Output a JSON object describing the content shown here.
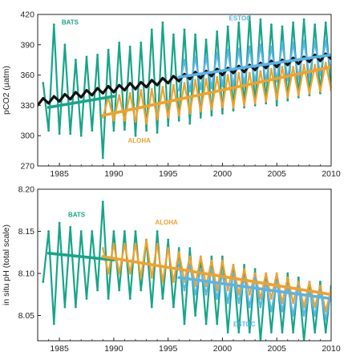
{
  "chart_data": [
    {
      "type": "line",
      "ylabel": "pCO2 (µatm)",
      "xlim": [
        1983,
        2010
      ],
      "ylim": [
        270,
        420
      ],
      "xticks": [
        1985,
        1990,
        1995,
        2000,
        2005,
        2010
      ],
      "yticks": [
        270,
        300,
        330,
        360,
        390,
        420
      ],
      "grid": false,
      "series": [
        {
          "name": "BATS",
          "color": "#17a589",
          "x": [
            1983.5,
            1984.0,
            1984.5,
            1985.0,
            1985.5,
            1986.0,
            1986.5,
            1987.0,
            1987.5,
            1988.0,
            1988.5,
            1989.0,
            1989.5,
            1990.0,
            1990.5,
            1991.0,
            1991.5,
            1992.0,
            1992.5,
            1993.0,
            1993.5,
            1994.0,
            1994.5,
            1995.0,
            1995.5,
            1996.0,
            1996.5,
            1997.0,
            1997.5,
            1998.0,
            1998.5,
            1999.0,
            1999.5,
            2000.0,
            2000.5,
            2001.0,
            2001.5,
            2002.0,
            2002.5,
            2003.0,
            2003.5,
            2004.0,
            2004.5,
            2005.0,
            2005.5,
            2006.0,
            2006.5,
            2007.0,
            2007.5,
            2008.0,
            2008.5,
            2009.0,
            2009.5,
            2010.0
          ],
          "values": [
            352,
            305,
            410,
            302,
            390,
            302,
            375,
            300,
            378,
            305,
            380,
            278,
            385,
            305,
            392,
            306,
            388,
            300,
            392,
            305,
            405,
            303,
            412,
            310,
            400,
            315,
            405,
            312,
            400,
            318,
            395,
            320,
            403,
            322,
            408,
            325,
            412,
            328,
            418,
            330,
            415,
            332,
            410,
            330,
            408,
            335,
            412,
            338,
            415,
            340,
            410,
            342,
            412,
            345
          ]
        },
        {
          "name": "ESTOC",
          "color": "#5ab4e5",
          "x": [
            1996.0,
            1996.5,
            1997.0,
            1997.5,
            1998.0,
            1998.5,
            1999.0,
            1999.5,
            2000.0,
            2000.5,
            2001.0,
            2001.5,
            2002.0,
            2002.5,
            2003.0,
            2003.5,
            2004.0,
            2004.5,
            2005.0,
            2005.5,
            2006.0,
            2006.5,
            2007.0,
            2007.5,
            2008.0,
            2008.5,
            2009.0,
            2009.5,
            2010.0
          ],
          "values": [
            345,
            375,
            344,
            378,
            346,
            378,
            347,
            382,
            349,
            385,
            348,
            386,
            350,
            388,
            352,
            390,
            353,
            388,
            354,
            392,
            355,
            392,
            356,
            394,
            358,
            393,
            360,
            394,
            362
          ]
        },
        {
          "name": "ALOHA",
          "color": "#f0a12c",
          "x": [
            1989.0,
            1989.5,
            1990.0,
            1990.5,
            1991.0,
            1991.5,
            1992.0,
            1992.5,
            1993.0,
            1993.5,
            1994.0,
            1994.5,
            1995.0,
            1995.5,
            1996.0,
            1996.5,
            1997.0,
            1997.5,
            1998.0,
            1998.5,
            1999.0,
            1999.5,
            2000.0,
            2000.5,
            2001.0,
            2001.5,
            2002.0,
            2002.5,
            2003.0,
            2003.5,
            2004.0,
            2004.5,
            2005.0,
            2005.5,
            2006.0,
            2006.5,
            2007.0,
            2007.5,
            2008.0,
            2008.5,
            2009.0,
            2009.5,
            2010.0
          ],
          "values": [
            318,
            338,
            315,
            340,
            315,
            342,
            314,
            345,
            312,
            346,
            316,
            348,
            318,
            350,
            320,
            352,
            322,
            355,
            324,
            356,
            326,
            358,
            328,
            360,
            328,
            362,
            330,
            362,
            332,
            364,
            334,
            366,
            336,
            368,
            338,
            368,
            340,
            370,
            342,
            370,
            344,
            372,
            345
          ]
        },
        {
          "name": "",
          "color": "#111111",
          "x": [
            1983.0,
            1983.5,
            1984.0,
            1984.5,
            1985.0,
            1985.5,
            1986.0,
            1986.5,
            1987.0,
            1987.5,
            1988.0,
            1988.5,
            1989.0,
            1989.5,
            1990.0,
            1990.5,
            1991.0,
            1991.5,
            1992.0,
            1992.5,
            1993.0,
            1993.5,
            1994.0,
            1994.5,
            1995.0,
            1995.5,
            1996.0,
            1996.5,
            1997.0,
            1997.5,
            1998.0,
            1998.5,
            1999.0,
            1999.5,
            2000.0,
            2000.5,
            2001.0,
            2001.5,
            2002.0,
            2002.5,
            2003.0,
            2003.5,
            2004.0,
            2004.5,
            2005.0,
            2005.5,
            2006.0,
            2006.5,
            2007.0,
            2007.5,
            2008.0,
            2008.5,
            2009.0,
            2009.5,
            2010.0
          ],
          "values": [
            330,
            337,
            332,
            339,
            334,
            341,
            336,
            343,
            338,
            345,
            340,
            347,
            342,
            349,
            343,
            350,
            345,
            352,
            346,
            353,
            348,
            355,
            350,
            357,
            352,
            359,
            354,
            361,
            356,
            363,
            357,
            364,
            359,
            366,
            360,
            367,
            362,
            369,
            363,
            370,
            365,
            372,
            367,
            374,
            368,
            375,
            370,
            377,
            371,
            378,
            373,
            380,
            374,
            381,
            376
          ]
        },
        {
          "name": "",
          "color": "#17a589",
          "x": [
            1984.0,
            1990.0
          ],
          "values": [
            328,
            339
          ]
        },
        {
          "name": "",
          "color": "#f0a12c",
          "x": [
            1989.0,
            2010.0
          ],
          "values": [
            320,
            368
          ]
        },
        {
          "name": "",
          "color": "#5ab4e5",
          "x": [
            1996.0,
            2010.0
          ],
          "values": [
            358,
            380
          ]
        }
      ]
    },
    {
      "type": "line",
      "ylabel": "in situ pH (total scale)",
      "xlim": [
        1983,
        2010
      ],
      "ylim": [
        8.02,
        8.2
      ],
      "xticks": [
        1985,
        1990,
        1995,
        2000,
        2005,
        2010
      ],
      "yticks": [
        8.05,
        8.1,
        8.15,
        8.2
      ],
      "grid": false,
      "series": [
        {
          "name": "BATS",
          "color": "#17a589",
          "x": [
            1983.5,
            1984.0,
            1984.5,
            1985.0,
            1985.5,
            1986.0,
            1986.5,
            1987.0,
            1987.5,
            1988.0,
            1988.5,
            1989.0,
            1989.5,
            1990.0,
            1990.5,
            1991.0,
            1991.5,
            1992.0,
            1992.5,
            1993.0,
            1993.5,
            1994.0,
            1994.5,
            1995.0,
            1995.5,
            1996.0,
            1996.5,
            1997.0,
            1997.5,
            1998.0,
            1998.5,
            1999.0,
            1999.5,
            2000.0,
            2000.5,
            2001.0,
            2001.5,
            2002.0,
            2002.5,
            2003.0,
            2003.5,
            2004.0,
            2004.5,
            2005.0,
            2005.5,
            2006.0,
            2006.5,
            2007.0,
            2007.5,
            2008.0,
            2008.5,
            2009.0,
            2009.5,
            2010.0
          ],
          "values": [
            8.09,
            8.15,
            8.04,
            8.16,
            8.06,
            8.155,
            8.06,
            8.15,
            8.07,
            8.15,
            8.08,
            8.185,
            8.07,
            8.15,
            8.08,
            8.15,
            8.07,
            8.15,
            8.08,
            8.14,
            8.06,
            8.15,
            8.07,
            8.14,
            8.06,
            8.13,
            8.04,
            8.13,
            8.05,
            8.12,
            8.04,
            8.12,
            8.04,
            8.12,
            8.03,
            8.11,
            8.03,
            8.11,
            8.03,
            8.105,
            8.02,
            8.1,
            8.03,
            8.1,
            8.03,
            8.1,
            8.03,
            8.095,
            8.02,
            8.09,
            8.03,
            8.09,
            8.03,
            8.085
          ]
        },
        {
          "name": "ALOHA",
          "color": "#f0a12c",
          "x": [
            1989.0,
            1989.5,
            1990.0,
            1990.5,
            1991.0,
            1991.5,
            1992.0,
            1992.5,
            1993.0,
            1993.5,
            1994.0,
            1994.5,
            1995.0,
            1995.5,
            1996.0,
            1996.5,
            1997.0,
            1997.5,
            1998.0,
            1998.5,
            1999.0,
            1999.5,
            2000.0,
            2000.5,
            2001.0,
            2001.5,
            2002.0,
            2002.5,
            2003.0,
            2003.5,
            2004.0,
            2004.5,
            2005.0,
            2005.5,
            2006.0,
            2006.5,
            2007.0,
            2007.5,
            2008.0,
            2008.5,
            2009.0,
            2009.5,
            2010.0
          ],
          "values": [
            8.13,
            8.1,
            8.135,
            8.1,
            8.135,
            8.1,
            8.135,
            8.095,
            8.14,
            8.095,
            8.135,
            8.09,
            8.13,
            8.09,
            8.125,
            8.09,
            8.12,
            8.085,
            8.12,
            8.085,
            8.115,
            8.08,
            8.115,
            8.08,
            8.11,
            8.075,
            8.105,
            8.075,
            8.1,
            8.07,
            8.1,
            8.07,
            8.1,
            8.065,
            8.095,
            8.065,
            8.09,
            8.06,
            8.09,
            8.06,
            8.085,
            8.055,
            8.08
          ]
        },
        {
          "name": "ESTOC",
          "color": "#5ab4e5",
          "x": [
            1996.0,
            1996.5,
            1997.0,
            1997.5,
            1998.0,
            1998.5,
            1999.0,
            1999.5,
            2000.0,
            2000.5,
            2001.0,
            2001.5,
            2002.0,
            2002.5,
            2003.0,
            2003.5,
            2004.0,
            2004.5,
            2005.0,
            2005.5,
            2006.0,
            2006.5,
            2007.0,
            2007.5,
            2008.0,
            2008.5,
            2009.0,
            2009.5,
            2010.0
          ],
          "values": [
            8.11,
            8.08,
            8.11,
            8.075,
            8.105,
            8.075,
            8.105,
            8.07,
            8.1,
            8.065,
            8.1,
            8.065,
            8.095,
            8.06,
            8.095,
            8.06,
            8.09,
            8.055,
            8.09,
            8.055,
            8.085,
            8.05,
            8.085,
            8.05,
            8.08,
            8.05,
            8.08,
            8.045,
            8.075
          ]
        },
        {
          "name": "",
          "color": "#17a589",
          "x": [
            1984.0,
            1990.0
          ],
          "values": [
            8.124,
            8.116
          ]
        },
        {
          "name": "",
          "color": "#f0a12c",
          "x": [
            1989.0,
            2010.0
          ],
          "values": [
            8.12,
            8.075
          ]
        },
        {
          "name": "",
          "color": "#5ab4e5",
          "x": [
            1996.0,
            2010.0
          ],
          "values": [
            8.095,
            8.07
          ]
        }
      ]
    }
  ]
}
